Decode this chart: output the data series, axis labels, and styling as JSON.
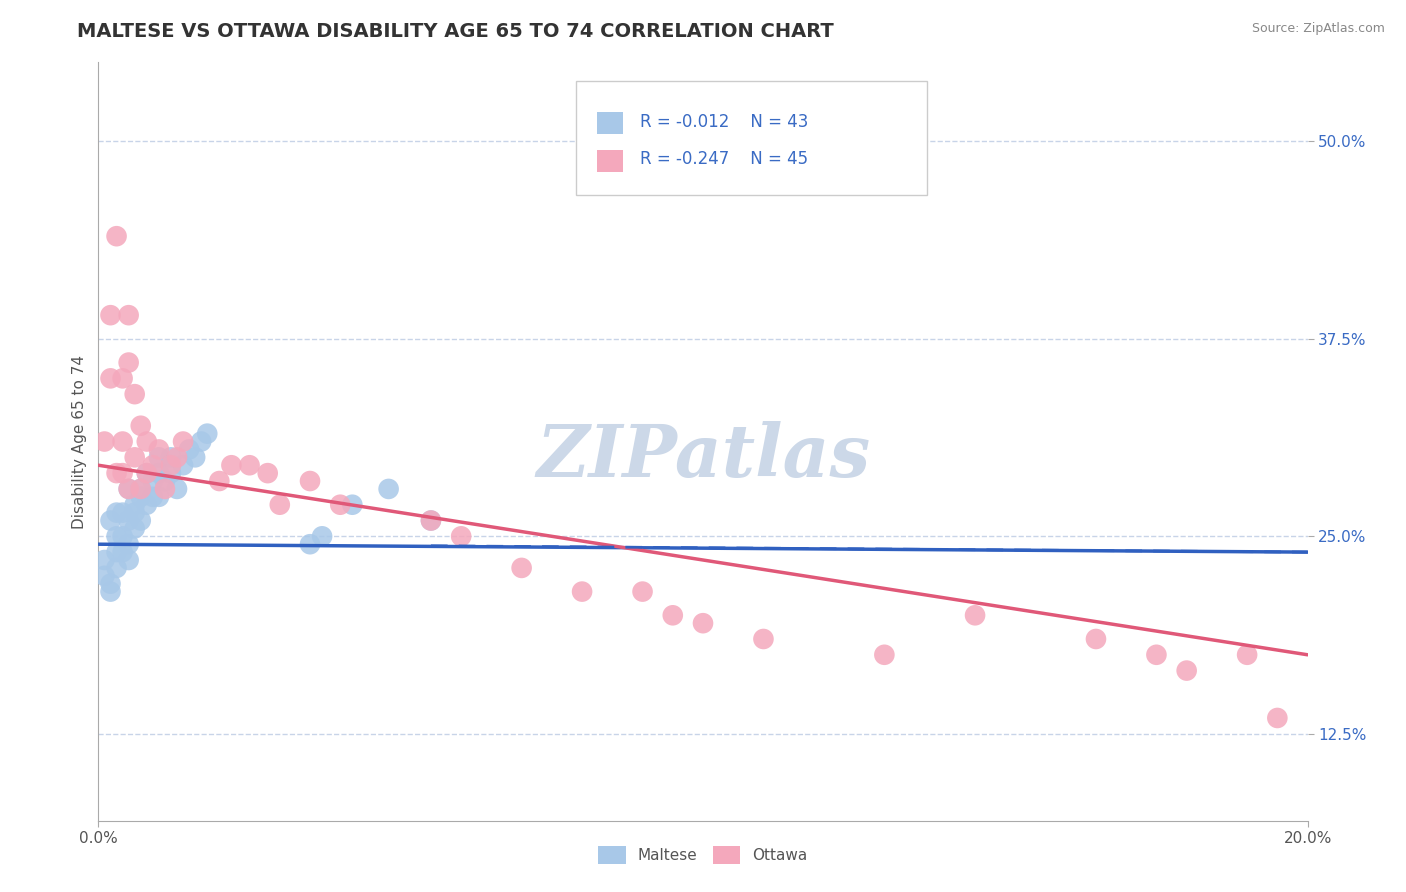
{
  "title": "MALTESE VS OTTAWA DISABILITY AGE 65 TO 74 CORRELATION CHART",
  "source_text": "Source: ZipAtlas.com",
  "ylabel": "Disability Age 65 to 74",
  "xlim": [
    0.0,
    0.2
  ],
  "ylim": [
    0.07,
    0.55
  ],
  "ytick_positions": [
    0.125,
    0.25,
    0.375,
    0.5
  ],
  "legend_r_maltese": "R = -0.012",
  "legend_n_maltese": "N = 43",
  "legend_r_ottawa": "R = -0.247",
  "legend_n_ottawa": "N = 45",
  "maltese_color": "#a8c8e8",
  "ottawa_color": "#f4a8bc",
  "maltese_line_color": "#3060c0",
  "ottawa_line_color": "#e05878",
  "background_color": "#ffffff",
  "grid_color": "#c8d4e8",
  "watermark_color": "#ccd8e8",
  "title_fontsize": 14,
  "axis_label_fontsize": 11,
  "tick_fontsize": 11,
  "legend_fontsize": 12,
  "maltese_x": [
    0.001,
    0.001,
    0.002,
    0.002,
    0.002,
    0.003,
    0.003,
    0.003,
    0.003,
    0.004,
    0.004,
    0.004,
    0.005,
    0.005,
    0.005,
    0.005,
    0.006,
    0.006,
    0.006,
    0.007,
    0.007,
    0.007,
    0.008,
    0.008,
    0.009,
    0.009,
    0.01,
    0.01,
    0.01,
    0.011,
    0.012,
    0.012,
    0.013,
    0.014,
    0.015,
    0.016,
    0.017,
    0.018,
    0.035,
    0.037,
    0.042,
    0.048,
    0.055
  ],
  "maltese_y": [
    0.235,
    0.225,
    0.215,
    0.26,
    0.22,
    0.265,
    0.24,
    0.23,
    0.25,
    0.24,
    0.25,
    0.265,
    0.245,
    0.26,
    0.28,
    0.235,
    0.255,
    0.265,
    0.27,
    0.26,
    0.275,
    0.28,
    0.27,
    0.29,
    0.275,
    0.285,
    0.275,
    0.29,
    0.3,
    0.285,
    0.29,
    0.3,
    0.28,
    0.295,
    0.305,
    0.3,
    0.31,
    0.315,
    0.245,
    0.25,
    0.27,
    0.28,
    0.26
  ],
  "ottawa_x": [
    0.001,
    0.002,
    0.002,
    0.003,
    0.003,
    0.004,
    0.004,
    0.004,
    0.005,
    0.005,
    0.005,
    0.006,
    0.006,
    0.007,
    0.007,
    0.008,
    0.008,
    0.009,
    0.01,
    0.011,
    0.012,
    0.013,
    0.014,
    0.02,
    0.022,
    0.025,
    0.028,
    0.03,
    0.035,
    0.04,
    0.055,
    0.06,
    0.07,
    0.08,
    0.09,
    0.095,
    0.1,
    0.11,
    0.13,
    0.145,
    0.165,
    0.175,
    0.18,
    0.19,
    0.195
  ],
  "ottawa_y": [
    0.31,
    0.35,
    0.39,
    0.44,
    0.29,
    0.31,
    0.35,
    0.29,
    0.36,
    0.39,
    0.28,
    0.3,
    0.34,
    0.28,
    0.32,
    0.29,
    0.31,
    0.295,
    0.305,
    0.28,
    0.295,
    0.3,
    0.31,
    0.285,
    0.295,
    0.295,
    0.29,
    0.27,
    0.285,
    0.27,
    0.26,
    0.25,
    0.23,
    0.215,
    0.215,
    0.2,
    0.195,
    0.185,
    0.175,
    0.2,
    0.185,
    0.175,
    0.165,
    0.175,
    0.135
  ],
  "maltese_trend_x": [
    0.0,
    0.2
  ],
  "maltese_trend_y": [
    0.245,
    0.24
  ],
  "ottawa_trend_x": [
    0.0,
    0.2
  ],
  "ottawa_trend_y": [
    0.295,
    0.175
  ]
}
